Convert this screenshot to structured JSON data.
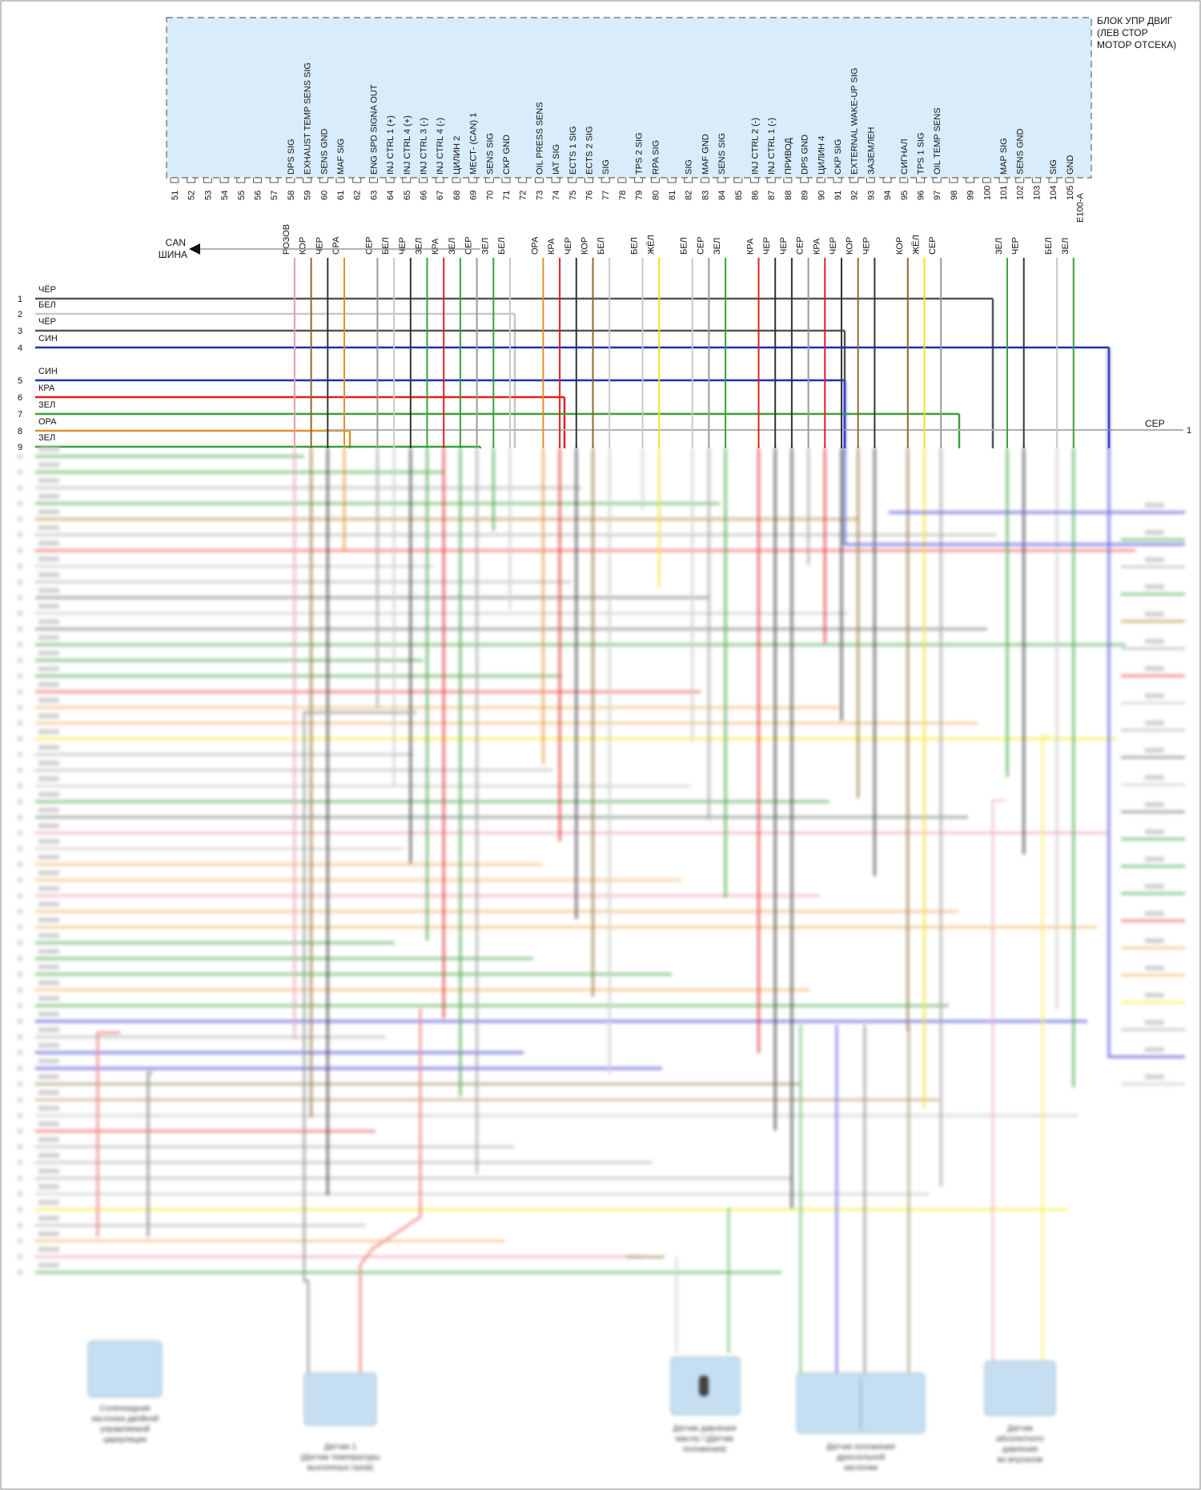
{
  "ecu": {
    "title_lines": [
      "БЛОК УПР ДВИГ",
      "(ЛЕВ СТОР",
      "МОТОР ОТСЕКА)"
    ],
    "connector": "E100-A",
    "fill_color": "#d9ecfb",
    "pins": [
      {
        "num": "51",
        "signal": "",
        "wire": "",
        "color": ""
      },
      {
        "num": "52",
        "signal": "",
        "wire": "",
        "color": ""
      },
      {
        "num": "53",
        "signal": "",
        "wire": "",
        "color": ""
      },
      {
        "num": "54",
        "signal": "",
        "wire": "",
        "color": ""
      },
      {
        "num": "55",
        "signal": "",
        "wire": "",
        "color": ""
      },
      {
        "num": "56",
        "signal": "",
        "wire": "",
        "color": ""
      },
      {
        "num": "57",
        "signal": "",
        "wire": "",
        "color": ""
      },
      {
        "num": "58",
        "signal": "DPS SIG",
        "wire": "РОЗОВ",
        "color": "#e89ab4"
      },
      {
        "num": "59",
        "signal": "EXHAUST TEMP SENS SIG",
        "wire": "КОР",
        "color": "#8a6b2e"
      },
      {
        "num": "60",
        "signal": "SENS GND",
        "wire": "ЧЕР",
        "color": "#333333"
      },
      {
        "num": "61",
        "signal": "MAF SIG",
        "wire": "ОРА",
        "color": "#e0902a"
      },
      {
        "num": "62",
        "signal": "",
        "wire": "",
        "color": ""
      },
      {
        "num": "63",
        "signal": "ENG SPD SIGNA OUT",
        "wire": "СЕР",
        "color": "#9a9a9a"
      },
      {
        "num": "64",
        "signal": "INJ CTRL 1 (+)",
        "wire": "БЕЛ",
        "color": "#c8c8c8"
      },
      {
        "num": "65",
        "signal": "INJ CTRL 4 (+)",
        "wire": "ЧЕР",
        "color": "#333333"
      },
      {
        "num": "66",
        "signal": "INJ CTRL 3 (-)",
        "wire": "ЗЕЛ",
        "color": "#3aa03a"
      },
      {
        "num": "67",
        "signal": "INJ CTRL 4 (-)",
        "wire": "КРА",
        "color": "#e02020"
      },
      {
        "num": "68",
        "signal": "ЦИЛИН 2",
        "wire": "ЗЕЛ",
        "color": "#3aa03a"
      },
      {
        "num": "69",
        "signal": "МЕСТ- (CAN) 1",
        "wire": "СЕР",
        "color": "#9a9a9a"
      },
      {
        "num": "70",
        "signal": "SENS SIG",
        "wire": "ЗЕЛ",
        "color": "#3aa03a"
      },
      {
        "num": "71",
        "signal": "CKP GND",
        "wire": "БЕЛ",
        "color": "#c8c8c8"
      },
      {
        "num": "72",
        "signal": "",
        "wire": "",
        "color": ""
      },
      {
        "num": "73",
        "signal": "OIL PRESS SENS",
        "wire": "ОРА",
        "color": "#e0902a"
      },
      {
        "num": "74",
        "signal": "IAT SIG",
        "wire": "КРА",
        "color": "#e02020"
      },
      {
        "num": "75",
        "signal": "ECTS 1 SIG",
        "wire": "ЧЕР",
        "color": "#333333"
      },
      {
        "num": "76",
        "signal": "ECTS 2 SIG",
        "wire": "КОР",
        "color": "#8a6b2e"
      },
      {
        "num": "77",
        "signal": "SIG",
        "wire": "БЕЛ",
        "color": "#c8c8c8"
      },
      {
        "num": "78",
        "signal": "",
        "wire": "",
        "color": ""
      },
      {
        "num": "79",
        "signal": "TPS 2 SIG",
        "wire": "БЕЛ",
        "color": "#c8c8c8"
      },
      {
        "num": "80",
        "signal": "RPA SIG",
        "wire": "ЖЁЛ",
        "color": "#f0e020"
      },
      {
        "num": "81",
        "signal": "",
        "wire": "",
        "color": ""
      },
      {
        "num": "82",
        "signal": "SIG",
        "wire": "БЕЛ",
        "color": "#c8c8c8"
      },
      {
        "num": "83",
        "signal": "MAF GND",
        "wire": "СЕР",
        "color": "#9a9a9a"
      },
      {
        "num": "84",
        "signal": "SENS SIG",
        "wire": "ЗЕЛ",
        "color": "#3aa03a"
      },
      {
        "num": "85",
        "signal": "",
        "wire": "",
        "color": ""
      },
      {
        "num": "86",
        "signal": "INJ CTRL 2 (-)",
        "wire": "КРА",
        "color": "#e02020"
      },
      {
        "num": "87",
        "signal": "INJ CTRL 1 (-)",
        "wire": "ЧЕР",
        "color": "#333333"
      },
      {
        "num": "88",
        "signal": "ПРИВОД",
        "wire": "ЧЕР",
        "color": "#333333"
      },
      {
        "num": "89",
        "signal": "DPS GND",
        "wire": "СЕР",
        "color": "#9a9a9a"
      },
      {
        "num": "90",
        "signal": "ЦИЛИН 4",
        "wire": "КРА",
        "color": "#e02020"
      },
      {
        "num": "91",
        "signal": "CKP SIG",
        "wire": "ЧЕР",
        "color": "#333333"
      },
      {
        "num": "92",
        "signal": "EXTERNAL WAKE-UP SIG",
        "wire": "КОР",
        "color": "#8a6b2e"
      },
      {
        "num": "93",
        "signal": "ЗАЗЕМЛЕН",
        "wire": "ЧЕР",
        "color": "#333333"
      },
      {
        "num": "94",
        "signal": "",
        "wire": "",
        "color": ""
      },
      {
        "num": "95",
        "signal": "СИГНАЛ",
        "wire": "КОР",
        "color": "#8a6b2e"
      },
      {
        "num": "96",
        "signal": "TPS 1 SIG",
        "wire": "ЖЁЛ",
        "color": "#f0e020"
      },
      {
        "num": "97",
        "signal": "OIL TEMP SENS",
        "wire": "СЕР",
        "color": "#9a9a9a"
      },
      {
        "num": "98",
        "signal": "",
        "wire": "",
        "color": ""
      },
      {
        "num": "99",
        "signal": "",
        "wire": "",
        "color": ""
      },
      {
        "num": "100",
        "signal": "",
        "wire": "",
        "color": ""
      },
      {
        "num": "101",
        "signal": "MAP SIG",
        "wire": "ЗЕЛ",
        "color": "#3aa03a"
      },
      {
        "num": "102",
        "signal": "SENS GND",
        "wire": "ЧЕР",
        "color": "#333333"
      },
      {
        "num": "103",
        "signal": "",
        "wire": "",
        "color": ""
      },
      {
        "num": "104",
        "signal": "SIG",
        "wire": "БЕЛ",
        "color": "#c8c8c8"
      },
      {
        "num": "105",
        "signal": "GND",
        "wire": "ЗЕЛ",
        "color": "#3aa03a"
      }
    ]
  },
  "can_bus": {
    "line1": "CAN",
    "line2": "ШИНА"
  },
  "left_lines": [
    {
      "num": "1",
      "label": "ЧЁР",
      "color": "#555555"
    },
    {
      "num": "2",
      "label": "БЕЛ",
      "color": "#c8c8c8"
    },
    {
      "num": "3",
      "label": "ЧЁР",
      "color": "#555555"
    },
    {
      "num": "4",
      "label": "СИН",
      "color": "#1e2fb0"
    },
    {
      "num": "5",
      "label": "СИН",
      "color": "#1e2fb0"
    },
    {
      "num": "6",
      "label": "КРА",
      "color": "#e02020"
    },
    {
      "num": "7",
      "label": "ЗЕЛ",
      "color": "#3aa03a"
    },
    {
      "num": "8",
      "label": "ОРА",
      "color": "#e0902a"
    },
    {
      "num": "9",
      "label": "ЗЕЛ",
      "color": "#3aa03a"
    }
  ],
  "right_line": {
    "label": "СЕР",
    "num": "1"
  },
  "blurred_rows": [
    "#6ab86a",
    "#6ab86a",
    "#bfbfbf",
    "#6ab86a",
    "#c8a060",
    "#bfbfbf",
    "#f07070",
    "#d0d0d0",
    "#bfbfbf",
    "#909090",
    "#d0d0d0",
    "#909090",
    "#6ab86a",
    "#6ab86a",
    "#6ab86a",
    "#f07070",
    "#f5c080",
    "#f5c080",
    "#f5f050",
    "#bfbfbf",
    "#bfbfbf",
    "#d0d0d0",
    "#6ab86a",
    "#909090",
    "#f0b0c0",
    "#d0d0d0",
    "#f5c080",
    "#f5c080",
    "#f0b0c0",
    "#f5c080",
    "#f5c080",
    "#6ab86a",
    "#6ab86a",
    "#6ab86a",
    "#f5c080",
    "#6ab86a",
    "#6060e0",
    "#bfbfbf",
    "#6060e0",
    "#6060e0",
    "#b0a080",
    "#c8b090",
    "#d0d0d0",
    "#f07070",
    "#bfbfbf",
    "#bfbfbf",
    "#bfbfbf",
    "#d0d0d0",
    "#f5f050",
    "#bfbfbf",
    "#f5c080",
    "#f0b0c0",
    "#6ab86a"
  ],
  "components": [
    {
      "id": "c1",
      "caption": [
        "Соленоидная",
        "заслонка двойной",
        "управляемой",
        "циркуляции"
      ]
    },
    {
      "id": "c2",
      "caption": [
        "Датчик 1",
        "(Датчик температуры",
        "выхлопных газов)"
      ]
    },
    {
      "id": "c3",
      "caption": [
        "Датчик давления",
        "масла / (Датчик",
        "положения)"
      ]
    },
    {
      "id": "c4",
      "caption": [
        "Датчик положения",
        "дроссельной",
        "заслонки"
      ]
    },
    {
      "id": "c5",
      "caption": [
        "Датчик",
        "абсолютного",
        "давления",
        "во впускном"
      ]
    }
  ]
}
